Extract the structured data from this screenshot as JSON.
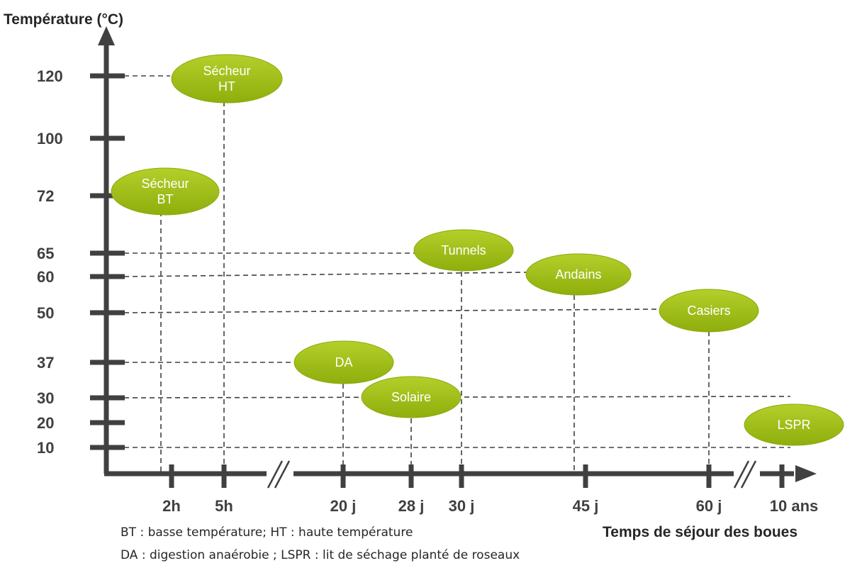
{
  "title_y": "Température (°C)",
  "title_x": "Temps de séjour des boues",
  "y_ticks": [
    "120",
    "100",
    "72",
    "65",
    "60",
    "50",
    "37",
    "30",
    "20",
    "10"
  ],
  "x_ticks": [
    "2h",
    "5h",
    "20 j",
    "28 j",
    "30 j",
    "45 j",
    "60 j",
    "10 ans"
  ],
  "processes": [
    {
      "label": "Sécheur\nHT",
      "temperature": "120",
      "duration": "5h"
    },
    {
      "label": "Sécheur\nBT",
      "temperature": "72",
      "duration": "2h"
    },
    {
      "label": "Tunnels",
      "temperature": "65",
      "duration": "30 j"
    },
    {
      "label": "Andains",
      "temperature": "60",
      "duration": "45 j"
    },
    {
      "label": "Casiers",
      "temperature": "50",
      "duration": "60 j"
    },
    {
      "label": "DA",
      "temperature": "37",
      "duration": "20 j"
    },
    {
      "label": "Solaire",
      "temperature": "30",
      "duration": "28 j"
    },
    {
      "label": "LSPR",
      "temperature": "10–30",
      "duration": "10 ans"
    }
  ],
  "notes": [
    "BT : basse température; HT : haute température",
    "DA : digestion anaérobie ; LSPR : lit de séchage planté de roseaux"
  ],
  "colors": {
    "ellipse": "#9bbb0f",
    "axis": "#404040",
    "guide": "#404040"
  }
}
